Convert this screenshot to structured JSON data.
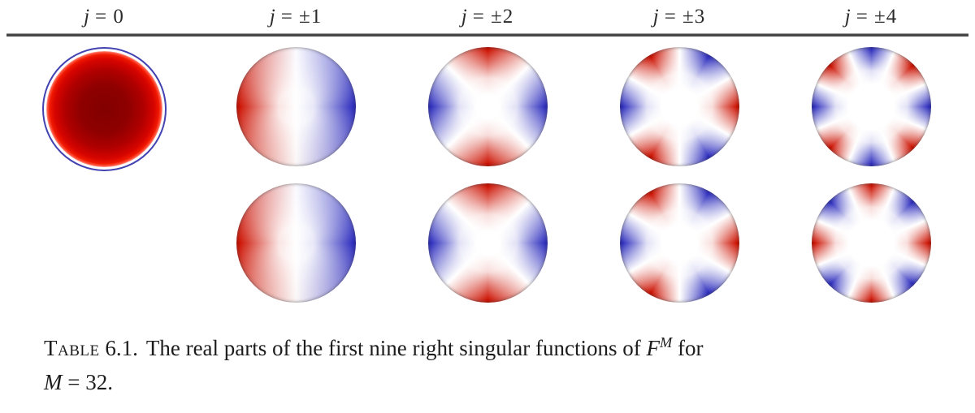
{
  "header": {
    "columns": [
      {
        "var": "j",
        "rel": "= 0"
      },
      {
        "var": "j",
        "rel": "= ±1"
      },
      {
        "var": "j",
        "rel": "= ±2"
      },
      {
        "var": "j",
        "rel": "= ±3"
      },
      {
        "var": "j",
        "rel": "= ±4"
      }
    ]
  },
  "figure": {
    "description": "Disk plots on the unit disk of the real parts of the first nine right singular functions; red = positive values, blue = negative values, white = zero; amplitude grows toward the rim",
    "colors": {
      "positive_red": "#cc1000",
      "negative_blue": "#2d2dbe",
      "j0_center_dark_red": "#8b0000",
      "j0_boundary_ring_blue": "#4343b2",
      "rule_gray": "#474747"
    },
    "rows": [
      {
        "cells": [
          "j0",
          "j1",
          "j2",
          "j3",
          "j4neg"
        ]
      },
      {
        "cells": [
          "",
          "j1",
          "j2",
          "j3",
          "j4pos"
        ]
      }
    ],
    "patterns": {
      "j0": "uniform positive (red) disk, darkest at center, brighter red toward rim, enclosed by a thin blue circle",
      "j1": "two lobes: red left half, blue right half, white vertical nodal line through center",
      "j2": "four rim lobes: red at top and bottom, blue at left and right, white X-shaped nodal region",
      "j3": "six alternating rim lobes: red at 0°, 120°, 240°; blue at 60°, 180°, 300°",
      "j4neg": "eight alternating rim lobes: blue at 0°, 90°, 180°, 270°; red at 45°, 135°, 225°, 315°",
      "j4pos": "eight alternating rim lobes: red at 0°, 90°, 180°, 270°; blue at 45°, 135°, 225°, 315°"
    }
  },
  "caption": {
    "label_word": "Table",
    "label_number": "6.1.",
    "body": "The real parts of the first nine right singular functions of",
    "operator_symbol": "F",
    "operator_sup": "M",
    "tail": "for",
    "param_symbol": "M",
    "param_rest": "= 32."
  }
}
